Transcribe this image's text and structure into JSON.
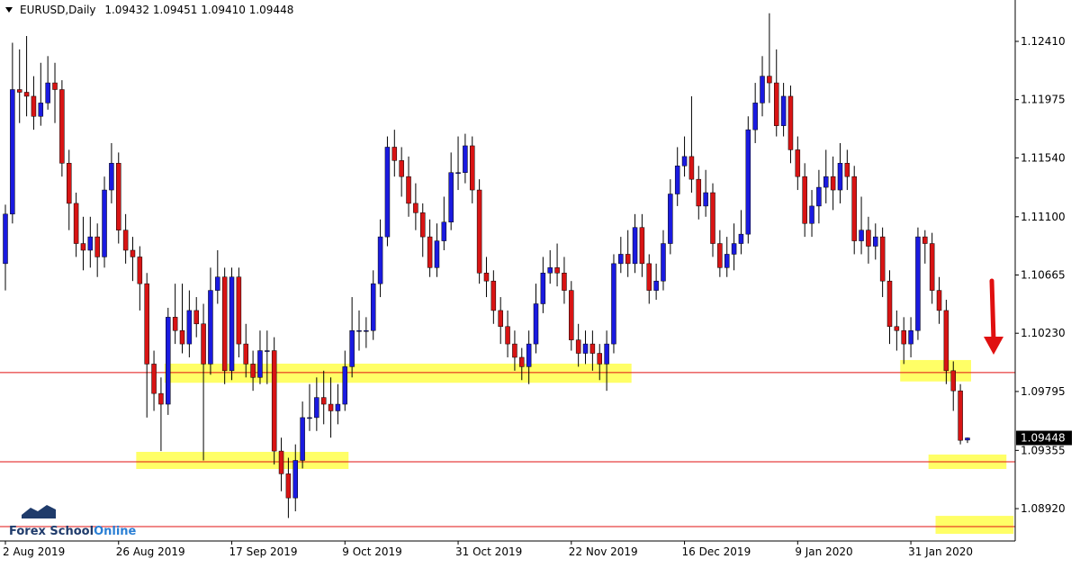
{
  "chart_data": {
    "type": "candlestick",
    "symbol": "EURUSD,Daily",
    "last_bar_labels": [
      "1.09432",
      "1.09451",
      "1.09410",
      "1.09448"
    ],
    "logo": [
      "Forex School",
      "Online"
    ],
    "up_color": "#1a1ae0",
    "down_color": "#d81414",
    "categories": [
      "2 Aug 2019",
      null,
      null,
      null,
      null,
      null,
      null,
      null,
      null,
      null,
      null,
      null,
      null,
      null,
      null,
      null,
      "26 Aug 2019",
      null,
      null,
      null,
      null,
      null,
      null,
      null,
      null,
      null,
      null,
      null,
      null,
      null,
      null,
      null,
      "17 Sep 2019",
      null,
      null,
      null,
      null,
      null,
      null,
      null,
      null,
      null,
      null,
      null,
      null,
      null,
      null,
      null,
      "9 Oct 2019",
      null,
      null,
      null,
      null,
      null,
      null,
      null,
      null,
      null,
      null,
      null,
      null,
      null,
      null,
      null,
      "31 Oct 2019",
      null,
      null,
      null,
      null,
      null,
      null,
      null,
      null,
      null,
      null,
      null,
      null,
      null,
      null,
      null,
      "22 Nov 2019",
      null,
      null,
      null,
      null,
      null,
      null,
      null,
      null,
      null,
      null,
      null,
      null,
      null,
      null,
      null,
      "16 Dec 2019",
      null,
      null,
      null,
      null,
      null,
      null,
      null,
      null,
      null,
      null,
      null,
      null,
      null,
      null,
      null,
      "9 Jan 2020",
      null,
      null,
      null,
      null,
      null,
      null,
      null,
      null,
      null,
      null,
      null,
      null,
      null,
      null,
      null,
      "31 Jan 2020",
      null,
      null,
      null,
      null,
      null,
      null,
      null,
      null
    ],
    "open": [
      1.1075,
      1.1112,
      1.1205,
      1.1203,
      1.12,
      1.1185,
      1.1195,
      1.121,
      1.1205,
      1.115,
      1.112,
      1.109,
      1.1085,
      1.1095,
      1.108,
      1.113,
      1.115,
      1.11,
      1.1085,
      1.108,
      1.106,
      1.1,
      1.0978,
      1.097,
      1.1035,
      1.1025,
      1.1015,
      1.104,
      1.103,
      1.1,
      1.1055,
      1.1065,
      1.0995,
      1.1065,
      1.1015,
      1.1,
      1.099,
      1.101,
      1.101,
      1.0935,
      1.0918,
      1.09,
      1.0928,
      1.096,
      1.096,
      1.0975,
      1.097,
      1.0965,
      1.097,
      1.0998,
      1.1025,
      1.1025,
      1.1025,
      1.106,
      1.1095,
      1.1162,
      1.1152,
      1.114,
      1.112,
      1.1113,
      1.1095,
      1.1072,
      1.1092,
      1.1106,
      1.1143,
      1.1143,
      1.1163,
      1.113,
      1.1068,
      1.1062,
      1.104,
      1.1028,
      1.1015,
      1.1005,
      1.0998,
      1.1015,
      1.1045,
      1.1068,
      1.1072,
      1.1068,
      1.1055,
      1.1018,
      1.1008,
      1.1015,
      1.1008,
      1.1,
      1.1015,
      1.1075,
      1.1082,
      1.1075,
      1.1102,
      1.1075,
      1.1055,
      1.1062,
      1.109,
      1.1127,
      1.1148,
      1.1155,
      1.1138,
      1.1118,
      1.1128,
      1.109,
      1.1072,
      1.1082,
      1.109,
      1.1097,
      1.1175,
      1.1195,
      1.1215,
      1.121,
      1.1178,
      1.12,
      1.116,
      1.114,
      1.1105,
      1.1118,
      1.1132,
      1.114,
      1.113,
      1.115,
      1.114,
      1.1092,
      1.11,
      1.1088,
      1.1095,
      1.1062,
      1.1028,
      1.1025,
      1.1015,
      1.1025,
      1.1095,
      1.109,
      1.1055,
      1.104,
      1.0995,
      1.098,
      1.09432
    ],
    "high": [
      1.1119,
      1.124,
      1.1235,
      1.1245,
      1.1215,
      1.1225,
      1.123,
      1.1225,
      1.1212,
      1.116,
      1.1128,
      1.111,
      1.111,
      1.1105,
      1.114,
      1.1165,
      1.1158,
      1.1112,
      1.1095,
      1.1088,
      1.1068,
      1.101,
      1.099,
      1.1042,
      1.106,
      1.106,
      1.1055,
      1.105,
      1.1045,
      1.1072,
      1.1085,
      1.1072,
      1.1072,
      1.1072,
      1.103,
      1.101,
      1.1025,
      1.1025,
      1.102,
      1.0945,
      1.093,
      1.094,
      1.0972,
      1.0985,
      1.099,
      1.0995,
      1.099,
      1.0985,
      1.101,
      1.105,
      1.104,
      1.1035,
      1.107,
      1.1108,
      1.117,
      1.1175,
      1.1162,
      1.1155,
      1.1135,
      1.112,
      1.1108,
      1.1105,
      1.1125,
      1.1158,
      1.117,
      1.1172,
      1.117,
      1.1138,
      1.108,
      1.107,
      1.105,
      1.104,
      1.1025,
      1.1012,
      1.1025,
      1.106,
      1.108,
      1.1085,
      1.109,
      1.108,
      1.1062,
      1.103,
      1.1025,
      1.1025,
      1.1015,
      1.1025,
      1.1082,
      1.1095,
      1.11,
      1.1112,
      1.1112,
      1.1082,
      1.1075,
      1.11,
      1.1138,
      1.1162,
      1.117,
      1.12,
      1.1148,
      1.1145,
      1.1135,
      1.11,
      1.1095,
      1.1105,
      1.1115,
      1.1185,
      1.121,
      1.123,
      1.1262,
      1.1235,
      1.121,
      1.1208,
      1.117,
      1.115,
      1.113,
      1.1145,
      1.116,
      1.1155,
      1.1165,
      1.116,
      1.1148,
      1.1125,
      1.111,
      1.1105,
      1.1102,
      1.107,
      1.104,
      1.1035,
      1.1035,
      1.1102,
      1.11,
      1.1098,
      1.1065,
      1.1048,
      1.1002,
      1.0985,
      1.09451
    ],
    "low": [
      1.1055,
      1.1105,
      1.118,
      1.1185,
      1.1175,
      1.1178,
      1.119,
      1.118,
      1.114,
      1.11,
      1.108,
      1.107,
      1.1072,
      1.1065,
      1.1072,
      1.112,
      1.109,
      1.1075,
      1.1062,
      1.104,
      1.096,
      1.0965,
      1.0935,
      1.0962,
      1.1015,
      1.1008,
      1.1005,
      1.102,
      1.0928,
      1.0992,
      1.1045,
      1.0985,
      1.0988,
      1.1005,
      1.099,
      1.098,
      1.0985,
      1.0985,
      1.0925,
      1.0905,
      1.0885,
      1.089,
      1.0922,
      1.095,
      1.095,
      1.0955,
      1.0945,
      1.0955,
      1.0965,
      1.099,
      1.101,
      1.1012,
      1.1018,
      1.105,
      1.1088,
      1.114,
      1.1125,
      1.111,
      1.11,
      1.108,
      1.1065,
      1.1065,
      1.1085,
      1.11,
      1.113,
      1.1135,
      1.112,
      1.106,
      1.105,
      1.103,
      1.1015,
      1.1005,
      1.0995,
      1.0988,
      1.0985,
      1.1008,
      1.1038,
      1.106,
      1.1058,
      1.1045,
      1.101,
      1.0998,
      1.1,
      1.0995,
      1.0988,
      1.098,
      1.1008,
      1.1068,
      1.1065,
      1.1068,
      1.1065,
      1.1045,
      1.1048,
      1.1055,
      1.1082,
      1.1118,
      1.114,
      1.1128,
      1.1108,
      1.111,
      1.108,
      1.1065,
      1.1065,
      1.107,
      1.1082,
      1.109,
      1.1165,
      1.1185,
      1.1195,
      1.117,
      1.117,
      1.115,
      1.113,
      1.1095,
      1.1095,
      1.1105,
      1.112,
      1.1115,
      1.112,
      1.113,
      1.1082,
      1.1082,
      1.1075,
      1.1078,
      1.105,
      1.1015,
      1.101,
      1.1,
      1.1005,
      1.1018,
      1.1075,
      1.1045,
      1.103,
      1.0985,
      1.0965,
      1.094,
      1.0941
    ],
    "close": [
      1.1112,
      1.1205,
      1.1203,
      1.12,
      1.1185,
      1.1195,
      1.121,
      1.1205,
      1.115,
      1.112,
      1.109,
      1.1085,
      1.1095,
      1.108,
      1.113,
      1.115,
      1.11,
      1.1085,
      1.108,
      1.106,
      1.1,
      1.0978,
      1.097,
      1.1035,
      1.1025,
      1.1015,
      1.104,
      1.103,
      1.1,
      1.1055,
      1.1065,
      1.0995,
      1.1065,
      1.1015,
      1.1,
      1.099,
      1.101,
      1.101,
      1.0935,
      1.0918,
      1.09,
      1.0928,
      1.096,
      1.096,
      1.0975,
      1.097,
      1.0965,
      1.097,
      1.0998,
      1.1025,
      1.1025,
      1.1025,
      1.106,
      1.1095,
      1.1162,
      1.1152,
      1.114,
      1.112,
      1.1113,
      1.1095,
      1.1072,
      1.1092,
      1.1106,
      1.1143,
      1.1143,
      1.1163,
      1.113,
      1.1068,
      1.1062,
      1.104,
      1.1028,
      1.1015,
      1.1005,
      1.0998,
      1.1015,
      1.1045,
      1.1068,
      1.1072,
      1.1068,
      1.1055,
      1.1018,
      1.1008,
      1.1015,
      1.1008,
      1.1,
      1.1015,
      1.1075,
      1.1082,
      1.1075,
      1.1102,
      1.1075,
      1.1055,
      1.1062,
      1.109,
      1.1127,
      1.1148,
      1.1155,
      1.1138,
      1.1118,
      1.1128,
      1.109,
      1.1072,
      1.1082,
      1.109,
      1.1097,
      1.1175,
      1.1195,
      1.1215,
      1.121,
      1.1178,
      1.12,
      1.116,
      1.114,
      1.1105,
      1.1118,
      1.1132,
      1.114,
      1.113,
      1.115,
      1.114,
      1.1092,
      1.11,
      1.1088,
      1.1095,
      1.1062,
      1.1028,
      1.1025,
      1.1015,
      1.1025,
      1.1095,
      1.109,
      1.1055,
      1.104,
      1.0995,
      1.098,
      1.0943,
      1.09448
    ],
    "ylim": [
      1.08685,
      1.12719
    ],
    "yticks": [
      {
        "value": 1.1241,
        "label": "1.12410"
      },
      {
        "value": 1.11975,
        "label": "1.11975"
      },
      {
        "value": 1.1154,
        "label": "1.11540"
      },
      {
        "value": 1.111,
        "label": "1.11100"
      },
      {
        "value": 1.10665,
        "label": "1.10665"
      },
      {
        "value": 1.1023,
        "label": "1.10230"
      },
      {
        "value": 1.09795,
        "label": "1.09795"
      },
      {
        "value": 1.09355,
        "label": "1.09355"
      },
      {
        "value": 1.0892,
        "label": "1.08920"
      }
    ],
    "hlines": [
      1.09936,
      1.0927,
      1.08786
    ],
    "hline_color": "#e01010",
    "zones": [
      {
        "x0": 23,
        "x1": 88,
        "y0": 1.0986,
        "y1": 1.10003
      },
      {
        "x0": 19,
        "x1": 48,
        "y0": 1.09216,
        "y1": 1.09344
      },
      {
        "x0": 127,
        "x1": 136,
        "y0": 1.0987,
        "y1": 1.1003
      },
      {
        "x0": 131,
        "x1": 141,
        "y0": 1.09216,
        "y1": 1.09324
      },
      {
        "x0": 132,
        "x1": 142,
        "y0": 1.08732,
        "y1": 1.08866
      }
    ],
    "zone_color": "#ffff66"
  }
}
